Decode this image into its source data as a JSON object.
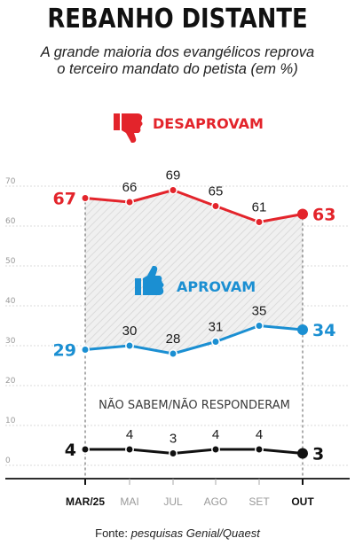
{
  "header": {
    "title": "REBANHO DISTANTE",
    "subtitle": "A grande maioria dos evangélicos reprova o terceiro mandato do petista (em %)"
  },
  "footer": {
    "source_prefix": "Fonte: ",
    "source_name": "pesquisas Genial/Quaest"
  },
  "colors": {
    "disapprove": "#e3242b",
    "approve": "#1b8fd2",
    "unsure": "#111111"
  },
  "icons": {
    "disapprove": "thumbs-down-icon",
    "approve": "thumbs-up-icon"
  },
  "chart_data": {
    "type": "line",
    "categories": [
      "MAR/25",
      "MAI",
      "JUL",
      "AGO",
      "SET",
      "OUT"
    ],
    "highlighted_categories": [
      "MAR/25",
      "OUT"
    ],
    "series": [
      {
        "name": "DESAPROVAM",
        "values": [
          67,
          66,
          69,
          65,
          61,
          63
        ]
      },
      {
        "name": "APROVAM",
        "values": [
          29,
          30,
          28,
          31,
          35,
          34
        ]
      },
      {
        "name": "NÃO SABEM/NÃO RESPONDERAM",
        "values": [
          4,
          4,
          3,
          4,
          4,
          3
        ]
      }
    ],
    "yticks": [
      "0",
      "10",
      "20",
      "30",
      "40",
      "50",
      "60",
      "70"
    ],
    "ylim": [
      0,
      72
    ],
    "grid": true
  }
}
